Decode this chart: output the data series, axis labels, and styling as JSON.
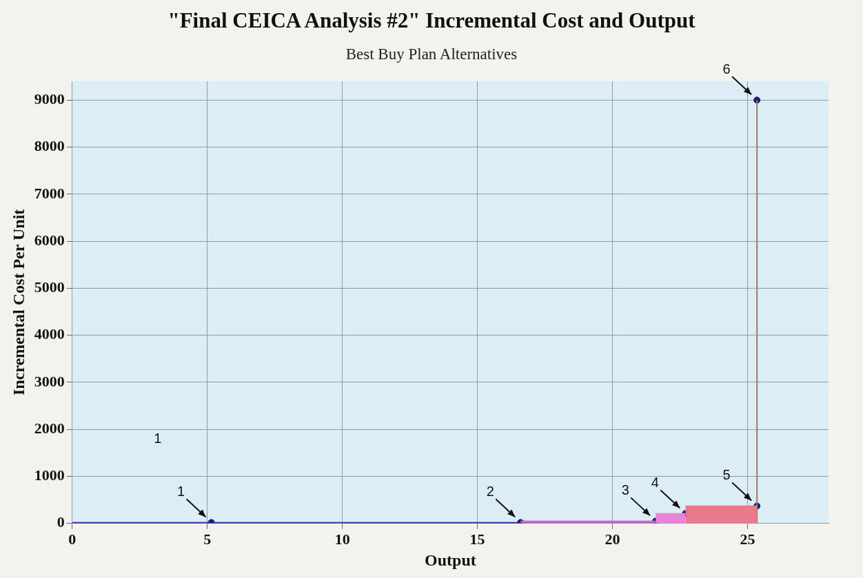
{
  "chart_data": {
    "type": "area",
    "title": "\"Final CEICA Analysis #2\" Incremental Cost and Output",
    "subtitle": "Best Buy Plan Alternatives",
    "xlabel": "Output",
    "ylabel": "Incremental Cost Per Unit",
    "xlim": [
      0,
      28
    ],
    "xticks": [
      0,
      5,
      10,
      15,
      20,
      25
    ],
    "ylim": [
      0,
      9400
    ],
    "yticks": [
      0,
      1000,
      2000,
      3000,
      4000,
      5000,
      6000,
      7000,
      8000,
      9000
    ],
    "grid": true,
    "legend": false,
    "series": [
      {
        "color": "#333399",
        "x": [
          0,
          5.15
        ],
        "values": [
          20,
          20
        ]
      },
      {
        "color": "#333399",
        "x": [
          5.15,
          16.6
        ],
        "values": [
          20,
          20
        ]
      },
      {
        "color": "#c866c8",
        "x": [
          16.6,
          21.6
        ],
        "values": [
          50,
          50
        ]
      },
      {
        "color": "#e884d8",
        "x": [
          21.6,
          22.7
        ],
        "values": [
          210,
          210
        ]
      },
      {
        "color": "#e87a8c",
        "x": [
          22.7,
          25.35
        ],
        "values": [
          370,
          370
        ]
      },
      {
        "type": "line",
        "color": "#a0786c",
        "x": [
          25.35,
          25.35
        ],
        "values": [
          0,
          9000
        ]
      },
      {
        "type": "scatter",
        "color": "#1a1a6e",
        "marker": "circle",
        "x": [
          5.15,
          16.6,
          21.6,
          22.7,
          25.35,
          25.35
        ],
        "values": [
          20,
          20,
          50,
          210,
          370,
          9000
        ]
      }
    ],
    "annotations": [
      "1",
      {
        "text": "1",
        "x": 5.15,
        "y": 20
      },
      {
        "text": "2",
        "x": 16.6,
        "y": 20
      },
      {
        "text": "3",
        "x": 21.6,
        "y": 50
      },
      {
        "text": "4",
        "x": 22.7,
        "y": 210
      },
      {
        "text": "5",
        "x": 25.35,
        "y": 370
      },
      {
        "text": "6",
        "x": 25.35,
        "y": 9000
      }
    ]
  }
}
